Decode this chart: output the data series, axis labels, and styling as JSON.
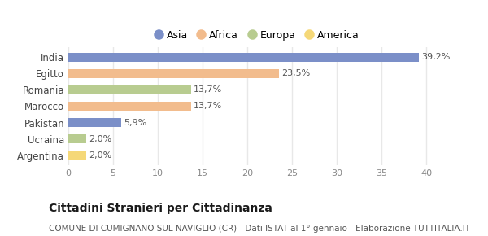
{
  "categories": [
    "India",
    "Egitto",
    "Romania",
    "Marocco",
    "Pakistan",
    "Ucraina",
    "Argentina"
  ],
  "values": [
    39.2,
    23.5,
    13.7,
    13.7,
    5.9,
    2.0,
    2.0
  ],
  "labels": [
    "39,2%",
    "23,5%",
    "13,7%",
    "13,7%",
    "5,9%",
    "2,0%",
    "2,0%"
  ],
  "colors": [
    "#7b8fc8",
    "#f2bc8d",
    "#b8cc90",
    "#f2bc8d",
    "#7b8fc8",
    "#b8cc90",
    "#f5d878"
  ],
  "legend_labels": [
    "Asia",
    "Africa",
    "Europa",
    "America"
  ],
  "legend_colors": [
    "#7b8fc8",
    "#f2bc8d",
    "#b8cc90",
    "#f5d878"
  ],
  "title": "Cittadini Stranieri per Cittadinanza",
  "subtitle": "COMUNE DI CUMIGNANO SUL NAVIGLIO (CR) - Dati ISTAT al 1° gennaio - Elaborazione TUTTITALIA.IT",
  "xlim": [
    0,
    42
  ],
  "xticks": [
    0,
    5,
    10,
    15,
    20,
    25,
    30,
    35,
    40
  ],
  "background_color": "#ffffff",
  "grid_color": "#e8e8e8",
  "title_fontsize": 10,
  "subtitle_fontsize": 7.5,
  "label_fontsize": 8,
  "ytick_fontsize": 8.5,
  "xtick_fontsize": 8,
  "bar_height": 0.55
}
